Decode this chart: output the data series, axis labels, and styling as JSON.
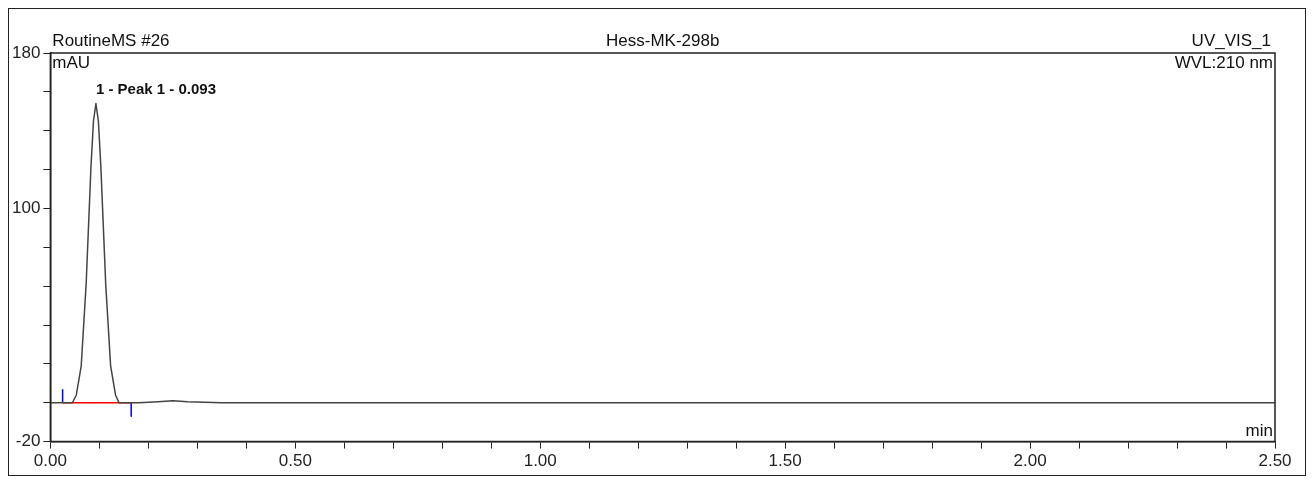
{
  "chart_data": {
    "type": "line",
    "title": "Hess-MK-298b",
    "xlabel": "min",
    "ylabel": "mAU",
    "annotations": [
      "RoutineMS #26",
      "UV_VIS_1",
      "WVL:210 nm",
      {
        "text": "1 - Peak 1 - 0.093",
        "x": 0.093,
        "y": 154
      }
    ],
    "series": [
      {
        "color": "#444444",
        "x": [
          0,
          0.03,
          0.045,
          0.053,
          0.063,
          0.073,
          0.083,
          0.088,
          0.093,
          0.098,
          0.103,
          0.113,
          0.123,
          0.133,
          0.14,
          0.18,
          0.22,
          0.25,
          0.28,
          0.35,
          0.5,
          1.0,
          1.5,
          2.0,
          2.5
        ],
        "values": [
          0,
          0,
          0,
          4,
          19,
          61,
          122,
          145,
          154,
          145,
          122,
          61,
          19,
          4,
          0,
          0,
          0.5,
          1,
          0.5,
          0,
          0,
          0,
          0,
          0,
          0
        ]
      },
      {
        "color": "#ff0000",
        "x": [
          0.025,
          0.165
        ],
        "values": [
          0,
          0
        ]
      },
      {
        "color": "#0000ff",
        "x": [
          0.025,
          0.025
        ],
        "values": [
          0,
          7
        ]
      },
      {
        "color": "#0000ff",
        "x": [
          0.165,
          0.165
        ],
        "values": [
          0,
          -7
        ]
      }
    ],
    "xlim": [
      0,
      2.5
    ],
    "ylim": [
      -20,
      180
    ],
    "xticks": [
      {
        "value": 0,
        "label": "0.00"
      },
      {
        "value": 0.1,
        "label": null
      },
      {
        "value": 0.2,
        "label": null
      },
      {
        "value": 0.3,
        "label": null
      },
      {
        "value": 0.4,
        "label": null
      },
      {
        "value": 0.5,
        "label": "0.50"
      },
      {
        "value": 0.6,
        "label": null
      },
      {
        "value": 0.7,
        "label": null
      },
      {
        "value": 0.8,
        "label": null
      },
      {
        "value": 0.9,
        "label": null
      },
      {
        "value": 1,
        "label": "1.00"
      },
      {
        "value": 1.1,
        "label": null
      },
      {
        "value": 1.2,
        "label": null
      },
      {
        "value": 1.3,
        "label": null
      },
      {
        "value": 1.4,
        "label": null
      },
      {
        "value": 1.5,
        "label": "1.50"
      },
      {
        "value": 1.6,
        "label": null
      },
      {
        "value": 1.7,
        "label": null
      },
      {
        "value": 1.8,
        "label": null
      },
      {
        "value": 1.9,
        "label": null
      },
      {
        "value": 2,
        "label": "2.00"
      },
      {
        "value": 2.1,
        "label": null
      },
      {
        "value": 2.2,
        "label": null
      },
      {
        "value": 2.3,
        "label": null
      },
      {
        "value": 2.4,
        "label": null
      },
      {
        "value": 2.5,
        "label": "2.50"
      }
    ],
    "yticks": [
      -20,
      {
        "value": 0,
        "label": null
      },
      {
        "value": 20,
        "label": null
      },
      {
        "value": 40,
        "label": null
      },
      {
        "value": 60,
        "label": null
      },
      {
        "value": 80,
        "label": null
      },
      100,
      {
        "value": 120,
        "label": null
      },
      {
        "value": 140,
        "label": null
      },
      {
        "value": 160,
        "label": null
      },
      180
    ],
    "grid": false,
    "legend": false,
    "marker": "none",
    "line_style": "solid"
  }
}
